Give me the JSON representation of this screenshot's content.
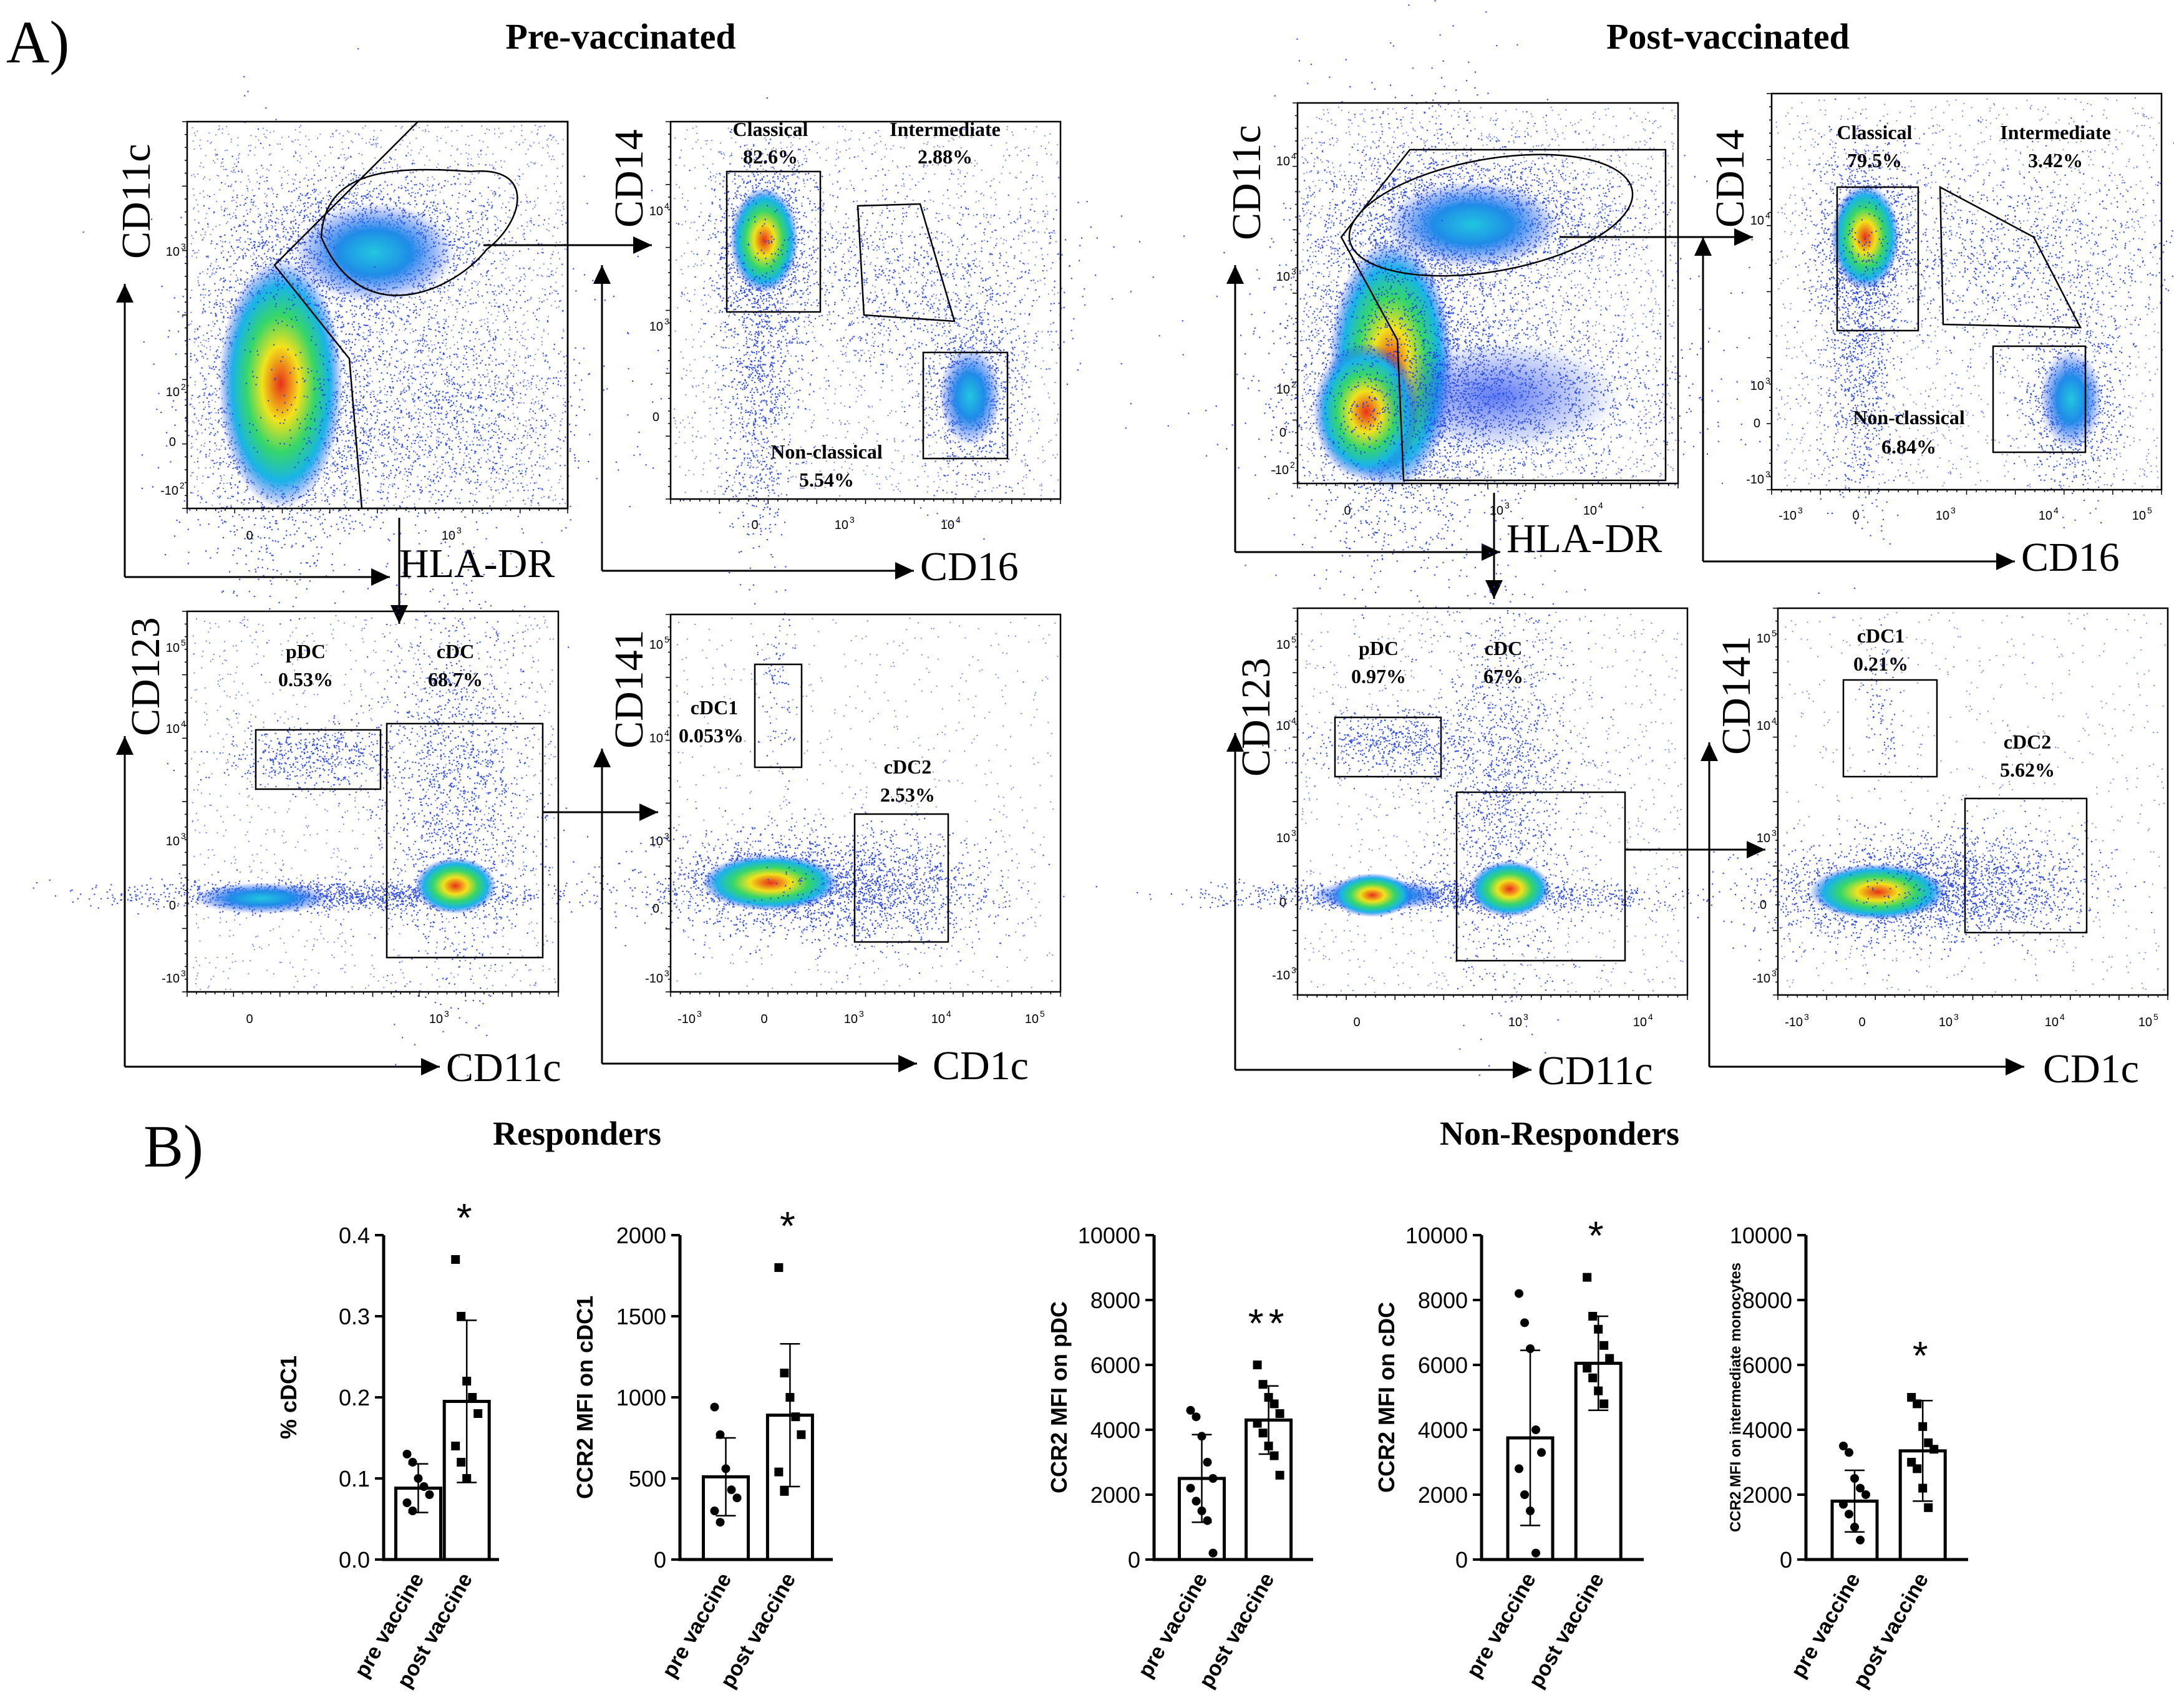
{
  "panel_labels": {
    "a": "A)",
    "b": "B)"
  },
  "section_titles": {
    "pre": "Pre-vaccinated",
    "post": "Post-vaccinated",
    "responders": "Responders",
    "nonresponders": "Non-Responders"
  },
  "axis_names": {
    "cd11c": "CD11c",
    "cd14": "CD14",
    "cd123": "CD123",
    "cd141": "CD141",
    "hladr": "HLA-DR",
    "cd16": "CD16",
    "cd1c": "CD1c"
  },
  "ticks": {
    "zero": "0",
    "e2": "10",
    "e3": "10",
    "e4": "10",
    "e5": "10",
    "m2": "-10",
    "m3": "-10",
    "exp2": "2",
    "exp3": "3",
    "exp4": "4",
    "exp5": "5"
  },
  "pre": {
    "classical_name": "Classical",
    "classical": "82.6%",
    "intermediate_name": "Intermediate",
    "intermediate": "2.88%",
    "nonclassical_name": "Non-classical",
    "nonclassical": "5.54%",
    "pdc_name": "pDC",
    "pdc": "0.53%",
    "cdc_name": "cDC",
    "cdc": "68.7%",
    "cdc1_name": "cDC1",
    "cdc1": "0.053%",
    "cdc2_name": "cDC2",
    "cdc2": "2.53%"
  },
  "post": {
    "classical_name": "Classical",
    "classical": "79.5%",
    "intermediate_name": "Intermediate",
    "intermediate": "3.42%",
    "nonclassical_name": "Non-classical",
    "nonclassical": "6.84%",
    "pdc_name": "pDC",
    "pdc": "0.97%",
    "cdc_name": "cDC",
    "cdc": "67%",
    "cdc1_name": "cDC1",
    "cdc1": "0.21%",
    "cdc2_name": "cDC2",
    "cdc2": "5.62%"
  },
  "colors": {
    "hot": "#e8301a",
    "warm": "#f2e21b",
    "mid": "#35d66a",
    "cyan": "#19b4e8",
    "dots": "#1f3ee8",
    "line": "#000000"
  },
  "chart_data": [
    {
      "type": "bar",
      "group": "Responders",
      "title": "",
      "ylabel": "% cDC1",
      "categories": [
        "pre vaccine",
        "post vaccine"
      ],
      "values": [
        0.088,
        0.195
      ],
      "sd": [
        0.03,
        0.1
      ],
      "ylim": [
        0,
        0.4
      ],
      "yticks": [
        "0.0",
        "0.1",
        "0.2",
        "0.3",
        "0.4"
      ],
      "significance": "*",
      "points": [
        [
          0.13,
          0.12,
          0.1,
          0.09,
          0.08,
          0.07,
          0.06
        ],
        [
          0.37,
          0.3,
          0.22,
          0.2,
          0.18,
          0.14,
          0.12,
          0.1
        ]
      ]
    },
    {
      "type": "bar",
      "group": "Responders",
      "title": "",
      "ylabel": "CCR2 MFI on cDC1",
      "categories": [
        "pre vaccine",
        "post vaccine"
      ],
      "values": [
        510,
        890
      ],
      "sd": [
        240,
        440
      ],
      "ylim": [
        0,
        2000
      ],
      "yticks": [
        "0",
        "500",
        "1000",
        "1500",
        "2000"
      ],
      "significance": "*",
      "points": [
        [
          940,
          770,
          560,
          430,
          380,
          300,
          230
        ],
        [
          1800,
          1150,
          1000,
          880,
          770,
          540,
          420
        ]
      ]
    },
    {
      "type": "bar",
      "group": "Non-Responders",
      "title": "",
      "ylabel": "CCR2 MFI on pDC",
      "categories": [
        "pre vaccine",
        "post vaccine"
      ],
      "values": [
        2500,
        4300
      ],
      "sd": [
        1350,
        1050
      ],
      "ylim": [
        0,
        10000
      ],
      "yticks": [
        "0",
        "2000",
        "4000",
        "6000",
        "8000",
        "10000"
      ],
      "significance": "**",
      "points": [
        [
          4600,
          4400,
          3800,
          3000,
          2500,
          2200,
          1800,
          1500,
          1200,
          200
        ],
        [
          6000,
          5400,
          5000,
          4800,
          4500,
          4200,
          3900,
          3500,
          3200,
          2600
        ]
      ]
    },
    {
      "type": "bar",
      "group": "Non-Responders",
      "title": "",
      "ylabel": "CCR2 MFI on cDC",
      "categories": [
        "pre vaccine",
        "post vaccine"
      ],
      "values": [
        3750,
        6050
      ],
      "sd": [
        2700,
        1450
      ],
      "ylim": [
        0,
        10000
      ],
      "yticks": [
        "0",
        "2000",
        "4000",
        "6000",
        "8000",
        "10000"
      ],
      "significance": "*",
      "points": [
        [
          8200,
          7300,
          6500,
          4000,
          3300,
          2800,
          2000,
          1500,
          200
        ],
        [
          8700,
          7500,
          7100,
          6600,
          6200,
          5900,
          5600,
          5200,
          4800
        ]
      ]
    },
    {
      "type": "bar",
      "group": "Non-Responders",
      "title": "",
      "ylabel": "CCR2 MFI on intermediate monocytes",
      "categories": [
        "pre vaccine",
        "post vaccine"
      ],
      "values": [
        1800,
        3350
      ],
      "sd": [
        950,
        1550
      ],
      "ylim": [
        0,
        10000
      ],
      "yticks": [
        "0",
        "2000",
        "4000",
        "6000",
        "8000",
        "10000"
      ],
      "significance": "*",
      "points": [
        [
          3500,
          3300,
          2500,
          2200,
          2000,
          1700,
          1400,
          1000,
          600
        ],
        [
          5000,
          4800,
          4100,
          3600,
          3400,
          3000,
          2800,
          2200,
          1600
        ]
      ]
    }
  ]
}
